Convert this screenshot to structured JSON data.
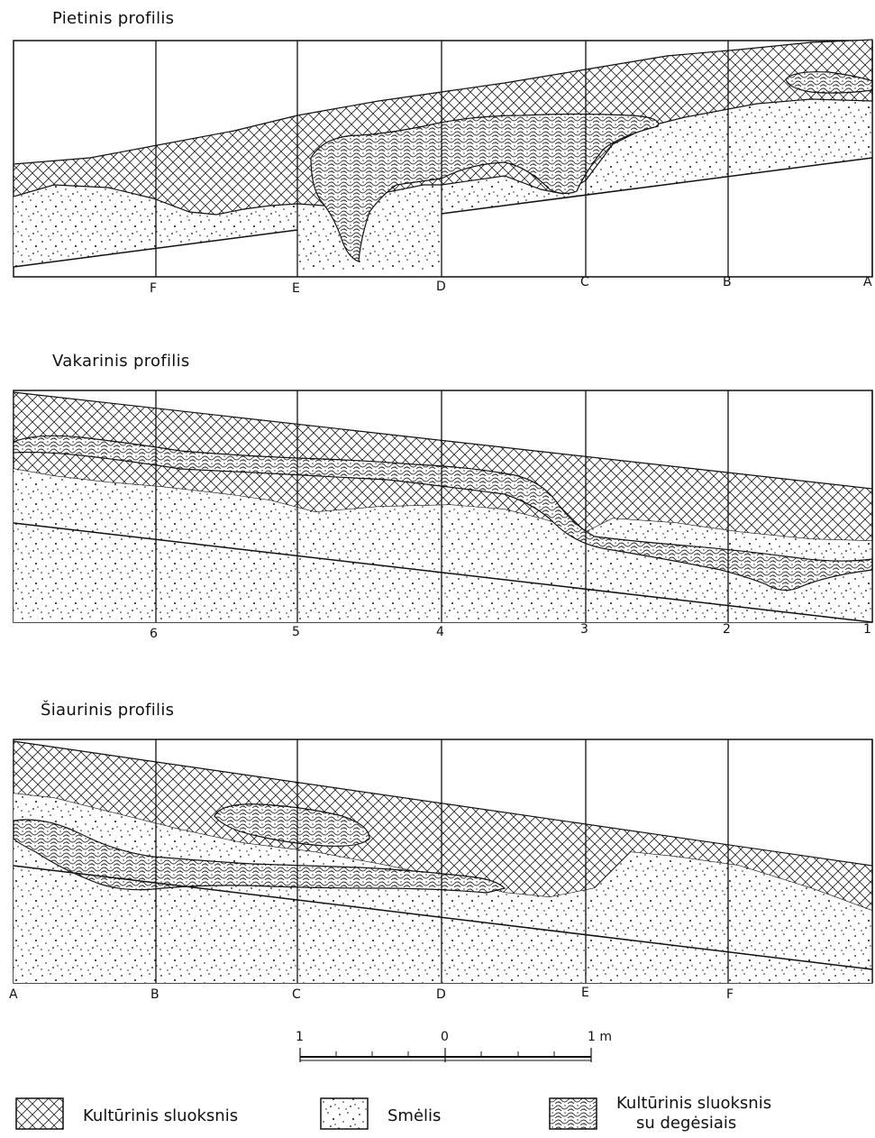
{
  "profiles": [
    {
      "title": "Pietinis  profilis",
      "axis_labels": [
        "F",
        "E",
        "D",
        "C",
        "B",
        "A"
      ]
    },
    {
      "title": "Vakarinis profilis",
      "axis_labels": [
        "6",
        "5",
        "4",
        "3",
        "2",
        "1"
      ]
    },
    {
      "title": "Šiaurinis  profilis",
      "axis_labels": [
        "A",
        "B",
        "C",
        "D",
        "E",
        "F"
      ]
    }
  ],
  "scale": {
    "left": "1",
    "mid": "0",
    "right": "1 m"
  },
  "legend": [
    {
      "label": "Kultūrinis  sluoksnis"
    },
    {
      "label": "Smėlis"
    },
    {
      "label_line1": "Kultūrinis  sluoksnis",
      "label_line2": "su  degėsiais"
    }
  ]
}
